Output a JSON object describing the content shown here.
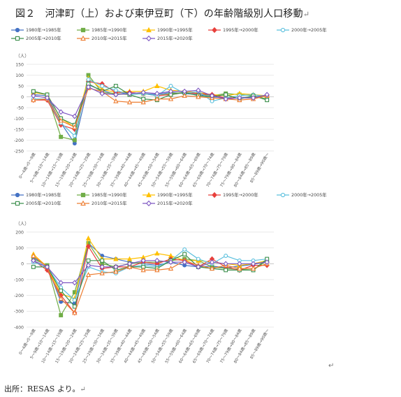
{
  "title": "図２　河津町（上）および東伊豆町（下）の年齢階級別人口移動",
  "return_mark": "↵",
  "source": "出所：RESAS より。",
  "series_styles": [
    {
      "color": "#4472C4",
      "marker": "circle-filled"
    },
    {
      "color": "#70AD47",
      "marker": "square-filled"
    },
    {
      "color": "#FFC000",
      "marker": "triangle-filled"
    },
    {
      "color": "#E8403C",
      "marker": "diamond-filled"
    },
    {
      "color": "#5BC0DE",
      "marker": "circle-open"
    },
    {
      "color": "#3C8F4D",
      "marker": "square-open"
    },
    {
      "color": "#ED7D31",
      "marker": "triangle-open"
    },
    {
      "color": "#7E57C2",
      "marker": "diamond-open"
    }
  ],
  "chart_data": [
    {
      "type": "line",
      "ylabel": "（人）",
      "ylim": [
        -250,
        150
      ],
      "yticks": [
        150,
        100,
        50,
        0,
        -50,
        -100,
        -150,
        -200,
        -250
      ],
      "grid": true,
      "legend": "top",
      "categories": [
        "0～4歳→5～9歳",
        "5～9歳→10～14歳",
        "10～14歳→15～19歳",
        "15～19歳→20～24歳",
        "20～24歳→25～29歳",
        "25～29歳→30～34歳",
        "30～34歳→35～39歳",
        "35～39歳→40～44歳",
        "40～44歳→45～49歳",
        "45～49歳→50～54歳",
        "50～54歳→55～59歳",
        "55～59歳→60～64歳",
        "60～64歳→65～69歳",
        "65～69歳→70～74歳",
        "70～74歳→75～79歳",
        "75～79歳→80～84歳",
        "80～84歳→85～89歳",
        "85～89歳→90歳～"
      ],
      "tick_labels": [
        "0～4歳→5～9歳",
        "5～9歳→10～14歳",
        "10～14歳→15～19歳",
        "15～19歳→20～24歳",
        "20～24歳→25～29歳",
        "25～29歳→30～34歳",
        "30～34歳→35～39歳",
        "35～39歳→40～44歳",
        "40～44歳→45～49歳",
        "45～49歳→50～54歳",
        "50～54歳→55～59歳",
        "55～59歳→60～64歳",
        "60～64歳→65～69歳",
        "65～69歳→70～74歳",
        "70～74歳→75～79歳",
        "75～79歳→80～84歳",
        "80～84歳→85～89歳",
        "85～89歳→90歳～"
      ],
      "series": [
        {
          "name": "1980年→1985年",
          "values": [
            10,
            5,
            -120,
            -215,
            55,
            30,
            10,
            20,
            15,
            10,
            20,
            15,
            10,
            0,
            -5,
            -5,
            0,
            5
          ]
        },
        {
          "name": "1985年→1990年",
          "values": [
            25,
            10,
            -185,
            -200,
            100,
            20,
            15,
            10,
            15,
            5,
            15,
            20,
            15,
            5,
            15,
            10,
            5,
            -10
          ]
        },
        {
          "name": "1990年→1995年",
          "values": [
            20,
            10,
            -100,
            -140,
            85,
            35,
            20,
            25,
            25,
            50,
            30,
            25,
            20,
            10,
            5,
            15,
            10,
            5
          ]
        },
        {
          "name": "1995年→2000年",
          "values": [
            -15,
            -15,
            -130,
            -150,
            70,
            60,
            20,
            20,
            15,
            5,
            10,
            20,
            15,
            10,
            -5,
            -5,
            -5,
            5
          ]
        },
        {
          "name": "2000年→2005年",
          "values": [
            -10,
            -10,
            -120,
            -180,
            80,
            50,
            30,
            10,
            15,
            5,
            50,
            15,
            25,
            -20,
            -5,
            5,
            10,
            0
          ]
        },
        {
          "name": "2005年→2010年",
          "values": [
            25,
            10,
            -100,
            -130,
            60,
            25,
            50,
            10,
            -10,
            -15,
            10,
            20,
            5,
            0,
            10,
            -10,
            5,
            -15
          ]
        },
        {
          "name": "2010年→2015年",
          "values": [
            -15,
            -10,
            -110,
            -140,
            40,
            25,
            -20,
            -25,
            -25,
            -10,
            -10,
            5,
            0,
            -5,
            -10,
            -15,
            -10,
            5
          ]
        },
        {
          "name": "2015年→2020年",
          "values": [
            5,
            -5,
            -70,
            -90,
            45,
            15,
            10,
            15,
            20,
            15,
            25,
            25,
            30,
            5,
            -10,
            -5,
            -5,
            10
          ]
        }
      ]
    },
    {
      "type": "line",
      "ylabel": "（人）",
      "ylim": [
        -400,
        200
      ],
      "yticks": [
        200,
        100,
        0,
        -100,
        -200,
        -300,
        -400
      ],
      "grid": true,
      "legend": "top",
      "categories": [
        "0～4歳→5～9歳",
        "5～9歳→10～14歳",
        "10～14歳→15～19歳",
        "15～19歳→20～24歳",
        "20～24歳→25～29歳",
        "25～29歳→30～34歳",
        "30～34歳→35～39歳",
        "35～39歳→40～44歳",
        "40～44歳→45～49歳",
        "45～49歳→50～54歳",
        "50～54歳→55～59歳",
        "55～59歳→60～64歳",
        "60～64歳→65～69歳",
        "65～69歳→70～74歳",
        "70～74歳→75～79歳",
        "75～79歳→80～84歳",
        "80～84歳→85～89歳",
        "85～89歳→90歳～"
      ],
      "tick_labels": [
        "0～4歳→5～9歳",
        "5～9歳→10～14歳",
        "10～14歳→15～19歳",
        "15～19歳→20～24歳",
        "20～24歳→25～29歳",
        "25～29歳→30～34歳",
        "30～34歳→35～39歳",
        "35～39歳→40～44歳",
        "40～44歳→45～49歳",
        "45～49歳→50～54歳",
        "50～54歳→55～59歳",
        "55～59歳→60～64歳",
        "60～64歳→65～69歳",
        "65～69歳→70～74歳",
        "70～74歳→75～79歳",
        "75～79歳→80～84歳",
        "80～84歳→85～89歳",
        "85～89歳→90歳～"
      ],
      "series": [
        {
          "name": "1980年→1985年",
          "values": [
            40,
            -15,
            -240,
            -250,
            130,
            50,
            30,
            10,
            0,
            -10,
            10,
            -10,
            -20,
            -15,
            -25,
            -15,
            -5,
            15
          ]
        },
        {
          "name": "1985年→1990年",
          "values": [
            30,
            -10,
            -325,
            -180,
            130,
            0,
            -20,
            0,
            10,
            10,
            20,
            30,
            20,
            -20,
            -30,
            -35,
            -40,
            20
          ]
        },
        {
          "name": "1990年→1995年",
          "values": [
            60,
            -20,
            -190,
            -220,
            160,
            30,
            30,
            30,
            40,
            65,
            50,
            20,
            20,
            10,
            0,
            -10,
            0,
            20
          ]
        },
        {
          "name": "1995年→2000年",
          "values": [
            20,
            -40,
            -200,
            -310,
            110,
            -30,
            -20,
            -20,
            10,
            0,
            30,
            20,
            -20,
            30,
            -20,
            -40,
            -10,
            -10
          ]
        },
        {
          "name": "2000年→2005年",
          "values": [
            10,
            -20,
            -150,
            -230,
            -20,
            -50,
            -60,
            -20,
            -10,
            -20,
            20,
            90,
            30,
            0,
            50,
            20,
            20,
            30
          ]
        },
        {
          "name": "2005年→2010年",
          "values": [
            -20,
            -20,
            -170,
            -270,
            20,
            20,
            -40,
            -20,
            -20,
            -30,
            20,
            60,
            -20,
            -30,
            -40,
            -40,
            -40,
            30
          ]
        },
        {
          "name": "2010年→2015年",
          "values": [
            50,
            -20,
            -220,
            -310,
            -70,
            -60,
            -50,
            -20,
            -40,
            -40,
            -30,
            20,
            -10,
            -30,
            -10,
            -30,
            -30,
            0
          ]
        },
        {
          "name": "2015年→2020年",
          "values": [
            20,
            -20,
            -120,
            -120,
            -10,
            -20,
            -20,
            0,
            20,
            20,
            10,
            10,
            -20,
            10,
            0,
            0,
            0,
            10
          ]
        }
      ]
    }
  ]
}
